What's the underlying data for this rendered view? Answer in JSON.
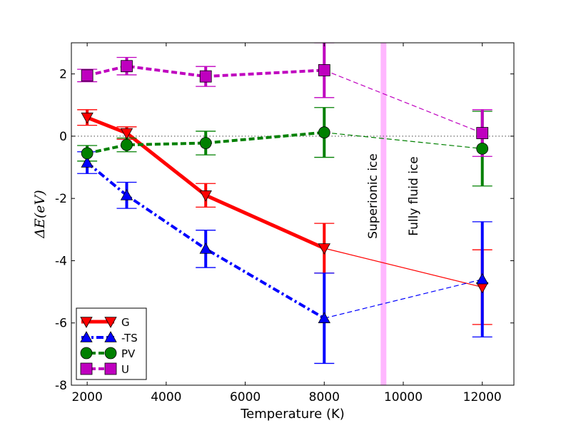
{
  "chart_data": {
    "type": "line",
    "xlabel": "Temperature (K)",
    "ylabel": "ΔE(eV)",
    "xlim": [
      1600,
      12800
    ],
    "ylim": [
      -8,
      3
    ],
    "xticks": [
      2000,
      4000,
      6000,
      8000,
      10000,
      12000
    ],
    "yticks": [
      -8,
      -6,
      -4,
      -2,
      0,
      2
    ],
    "reference_line_y": 0,
    "legend_position": "lower-left",
    "phase_boundary": {
      "x": 9500,
      "color": "#ff99ff"
    },
    "annotations": [
      "Superionic ice",
      "Fully fluid ice"
    ],
    "series": [
      {
        "name": "G",
        "color": "#ff0000",
        "marker": "triangle-down",
        "style": "solid",
        "x": [
          2000,
          3000,
          5000,
          8000,
          12000
        ],
        "y": [
          0.6,
          0.1,
          -1.9,
          -3.6,
          -4.85
        ],
        "err": [
          0.25,
          0.2,
          0.38,
          0.8,
          1.2
        ]
      },
      {
        "name": "-TS",
        "color": "#0000ff",
        "marker": "triangle-up",
        "style": "dashdot",
        "x": [
          2000,
          3000,
          5000,
          8000,
          12000
        ],
        "y": [
          -0.85,
          -1.9,
          -3.62,
          -5.85,
          -4.6
        ],
        "err": [
          0.35,
          0.42,
          0.6,
          1.45,
          1.85
        ]
      },
      {
        "name": "PV",
        "color": "#008000",
        "marker": "circle",
        "style": "dashed",
        "x": [
          2000,
          3000,
          5000,
          8000,
          12000
        ],
        "y": [
          -0.55,
          -0.28,
          -0.22,
          0.12,
          -0.4
        ],
        "err": [
          0.25,
          0.22,
          0.38,
          0.8,
          1.2
        ]
      },
      {
        "name": "U",
        "color": "#bf00bf",
        "marker": "square",
        "style": "dashed",
        "x": [
          2000,
          3000,
          5000,
          8000,
          12000
        ],
        "y": [
          1.95,
          2.25,
          1.92,
          2.12,
          0.1
        ],
        "err": [
          0.2,
          0.28,
          0.32,
          0.88,
          0.75
        ]
      }
    ]
  }
}
